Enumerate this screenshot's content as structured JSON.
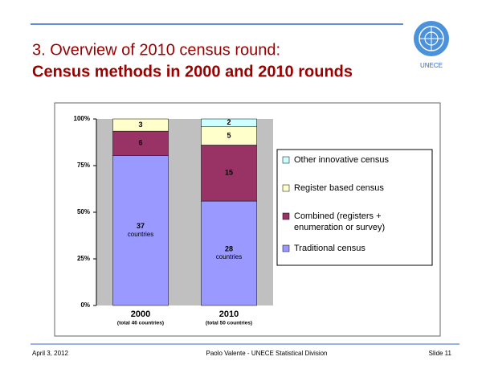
{
  "header": {
    "title_line1": "3.  Overview of 2010 census round:",
    "title_line2": "Census methods in 2000 and 2010 rounds",
    "logo_text": "UNECE"
  },
  "chart_data": {
    "type": "bar",
    "stacked": "percent",
    "categories": [
      "2000",
      "2010"
    ],
    "category_notes": [
      "(total 46 countries)",
      "(total 50 countries)"
    ],
    "series": [
      {
        "name": "Traditional census",
        "color": "#9999ff",
        "values": [
          37,
          28
        ],
        "label_unit": "countries"
      },
      {
        "name": "Combined (registers + enumeration or survey)",
        "color": "#993366",
        "values": [
          6,
          15
        ]
      },
      {
        "name": "Register based census",
        "color": "#ffffcc",
        "values": [
          3,
          5
        ]
      },
      {
        "name": "Other innovative census",
        "color": "#ccffff",
        "values": [
          0,
          2
        ]
      }
    ],
    "ylim": [
      0,
      100
    ],
    "yticks": [
      {
        "value": 0,
        "label": "0%"
      },
      {
        "value": 25,
        "label": "25%"
      },
      {
        "value": 50,
        "label": "50%"
      },
      {
        "value": 75,
        "label": "75%"
      },
      {
        "value": 100,
        "label": "100%"
      }
    ],
    "legend": "right"
  },
  "footer": {
    "date": "April 3, 2012",
    "author": "Paolo Valente - UNECE Statistical Division",
    "slide": "Slide 11"
  }
}
